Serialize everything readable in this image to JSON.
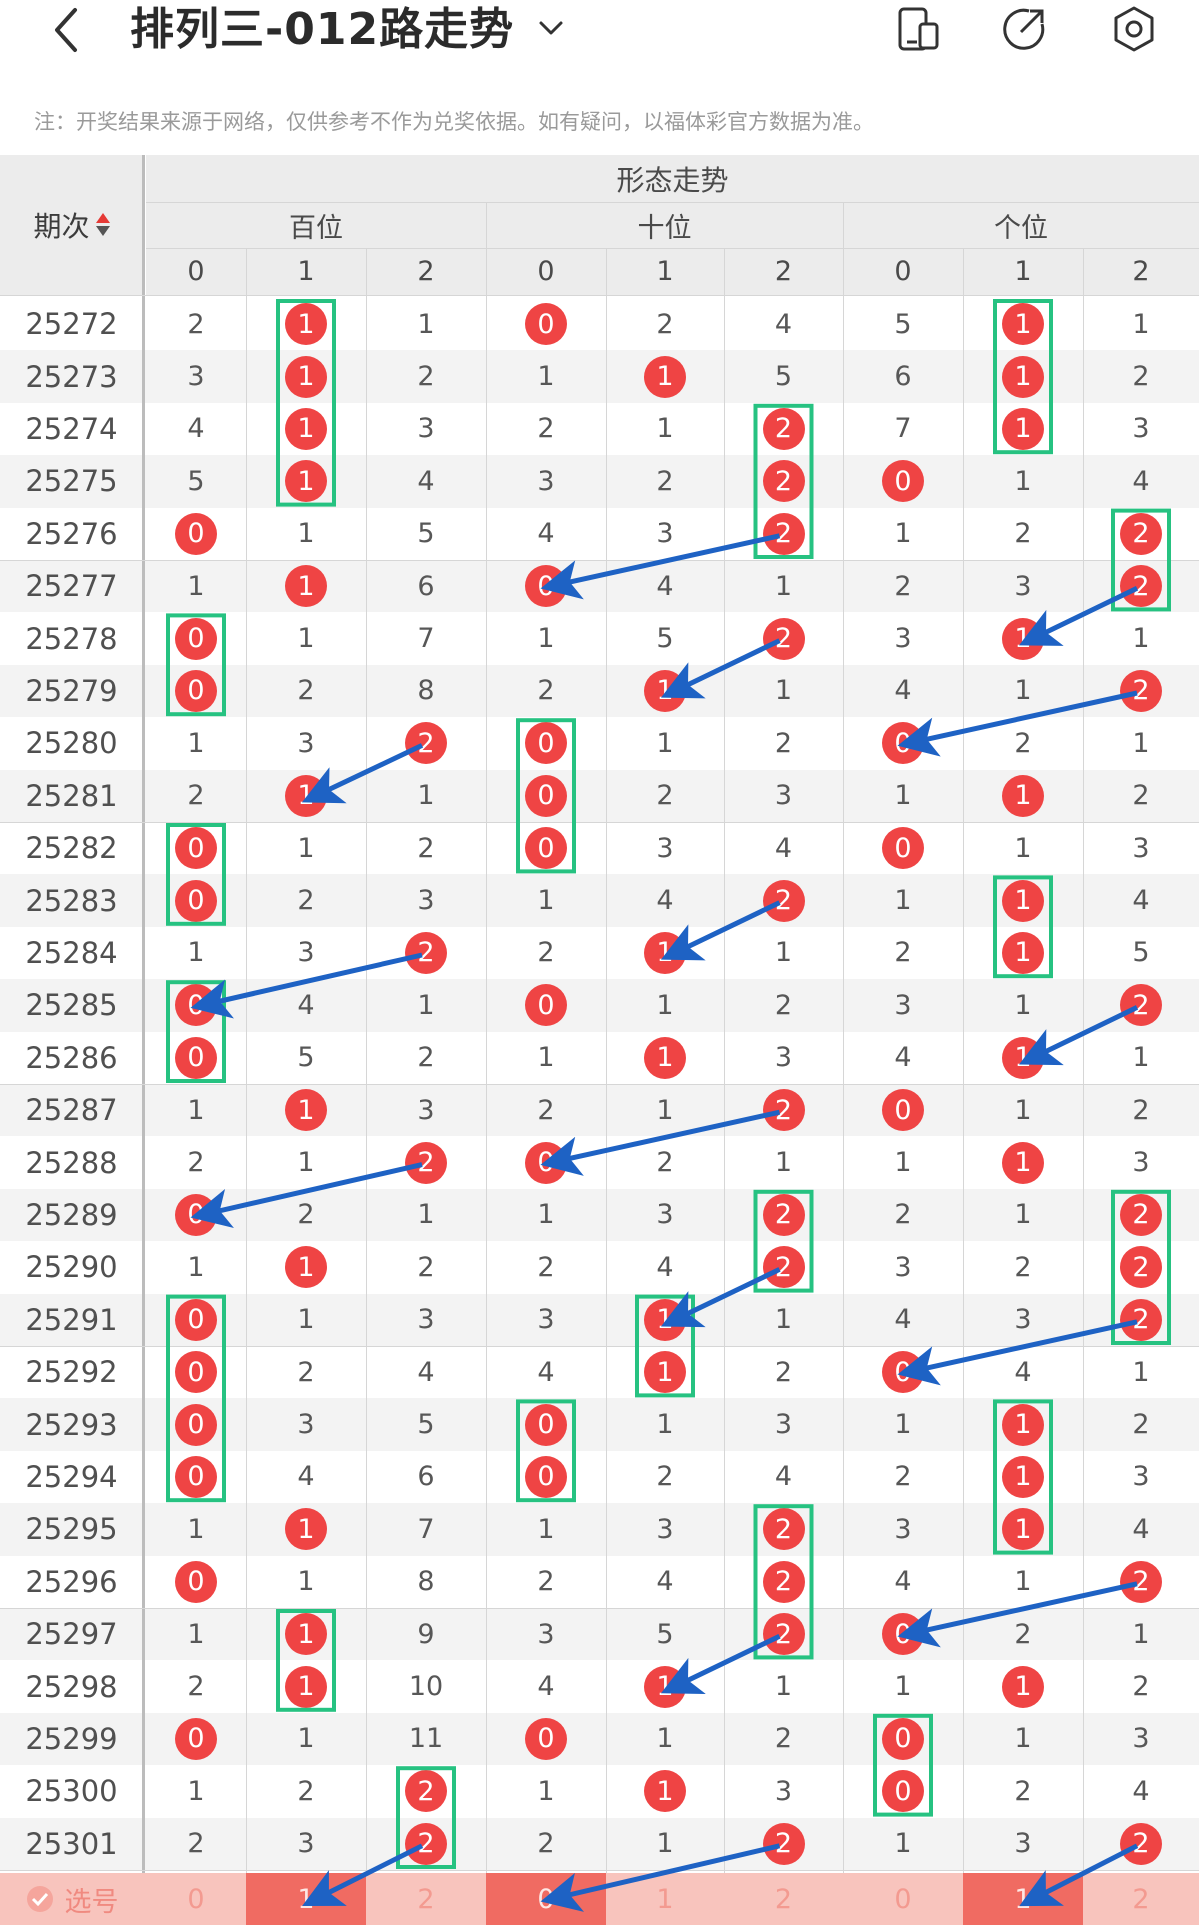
{
  "header": {
    "title": "排列三-012路走势",
    "back_icon": "chevron-left-icon",
    "dropdown_icon": "chevron-down-icon",
    "icons": [
      "phone-layout-icon",
      "share-icon",
      "settings-icon"
    ]
  },
  "note": "注：开奖结果来源于网络，仅供参考不作为兑奖依据。如有疑问，以福体彩官方数据为准。",
  "table": {
    "period_header": "期次",
    "section_header": "形态走势",
    "groups": [
      "百位",
      "十位",
      "个位"
    ],
    "digits": [
      "0",
      "1",
      "2"
    ],
    "rows": [
      {
        "period": "25272",
        "cells": [
          "2",
          "1",
          "1",
          "0",
          "2",
          "4",
          "5",
          "1",
          "1"
        ],
        "hit": [
          1,
          0,
          1
        ]
      },
      {
        "period": "25273",
        "cells": [
          "3",
          "1",
          "2",
          "1",
          "1",
          "5",
          "6",
          "1",
          "2"
        ],
        "hit": [
          1,
          1,
          1
        ]
      },
      {
        "period": "25274",
        "cells": [
          "4",
          "1",
          "3",
          "2",
          "1",
          "2",
          "7",
          "1",
          "3"
        ],
        "hit": [
          1,
          2,
          1
        ]
      },
      {
        "period": "25275",
        "cells": [
          "5",
          "1",
          "4",
          "3",
          "2",
          "2",
          "0",
          "1",
          "4"
        ],
        "hit": [
          1,
          2,
          0
        ]
      },
      {
        "period": "25276",
        "cells": [
          "0",
          "1",
          "5",
          "4",
          "3",
          "2",
          "1",
          "2",
          "2"
        ],
        "hit": [
          0,
          2,
          2
        ]
      },
      {
        "period": "25277",
        "cells": [
          "1",
          "1",
          "6",
          "0",
          "4",
          "1",
          "2",
          "3",
          "2"
        ],
        "hit": [
          1,
          0,
          2
        ]
      },
      {
        "period": "25278",
        "cells": [
          "0",
          "1",
          "7",
          "1",
          "5",
          "2",
          "3",
          "1",
          "1"
        ],
        "hit": [
          0,
          2,
          1
        ]
      },
      {
        "period": "25279",
        "cells": [
          "0",
          "2",
          "8",
          "2",
          "1",
          "1",
          "4",
          "1",
          "2"
        ],
        "hit": [
          0,
          1,
          2
        ]
      },
      {
        "period": "25280",
        "cells": [
          "1",
          "3",
          "2",
          "0",
          "1",
          "2",
          "0",
          "2",
          "1"
        ],
        "hit": [
          2,
          0,
          0
        ]
      },
      {
        "period": "25281",
        "cells": [
          "2",
          "1",
          "1",
          "0",
          "2",
          "3",
          "1",
          "1",
          "2"
        ],
        "hit": [
          1,
          0,
          1
        ]
      },
      {
        "period": "25282",
        "cells": [
          "0",
          "1",
          "2",
          "0",
          "3",
          "4",
          "0",
          "1",
          "3"
        ],
        "hit": [
          0,
          0,
          0
        ]
      },
      {
        "period": "25283",
        "cells": [
          "0",
          "2",
          "3",
          "1",
          "4",
          "2",
          "1",
          "1",
          "4"
        ],
        "hit": [
          0,
          2,
          1
        ]
      },
      {
        "period": "25284",
        "cells": [
          "1",
          "3",
          "2",
          "2",
          "1",
          "1",
          "2",
          "1",
          "5"
        ],
        "hit": [
          2,
          1,
          1
        ]
      },
      {
        "period": "25285",
        "cells": [
          "0",
          "4",
          "1",
          "0",
          "1",
          "2",
          "3",
          "1",
          "2"
        ],
        "hit": [
          0,
          0,
          2
        ]
      },
      {
        "period": "25286",
        "cells": [
          "0",
          "5",
          "2",
          "1",
          "1",
          "3",
          "4",
          "1",
          "1"
        ],
        "hit": [
          0,
          1,
          1
        ]
      },
      {
        "period": "25287",
        "cells": [
          "1",
          "1",
          "3",
          "2",
          "1",
          "2",
          "0",
          "1",
          "2"
        ],
        "hit": [
          1,
          2,
          0
        ]
      },
      {
        "period": "25288",
        "cells": [
          "2",
          "1",
          "2",
          "0",
          "2",
          "1",
          "1",
          "1",
          "3"
        ],
        "hit": [
          2,
          0,
          1
        ]
      },
      {
        "period": "25289",
        "cells": [
          "0",
          "2",
          "1",
          "1",
          "3",
          "2",
          "2",
          "1",
          "2"
        ],
        "hit": [
          0,
          2,
          2
        ]
      },
      {
        "period": "25290",
        "cells": [
          "1",
          "1",
          "2",
          "2",
          "4",
          "2",
          "3",
          "2",
          "2"
        ],
        "hit": [
          1,
          2,
          2
        ]
      },
      {
        "period": "25291",
        "cells": [
          "0",
          "1",
          "3",
          "3",
          "1",
          "1",
          "4",
          "3",
          "2"
        ],
        "hit": [
          0,
          1,
          2
        ]
      },
      {
        "period": "25292",
        "cells": [
          "0",
          "2",
          "4",
          "4",
          "1",
          "2",
          "0",
          "4",
          "1"
        ],
        "hit": [
          0,
          1,
          0
        ]
      },
      {
        "period": "25293",
        "cells": [
          "0",
          "3",
          "5",
          "0",
          "1",
          "3",
          "1",
          "1",
          "2"
        ],
        "hit": [
          0,
          0,
          1
        ]
      },
      {
        "period": "25294",
        "cells": [
          "0",
          "4",
          "6",
          "0",
          "2",
          "4",
          "2",
          "1",
          "3"
        ],
        "hit": [
          0,
          0,
          1
        ]
      },
      {
        "period": "25295",
        "cells": [
          "1",
          "1",
          "7",
          "1",
          "3",
          "2",
          "3",
          "1",
          "4"
        ],
        "hit": [
          1,
          2,
          1
        ]
      },
      {
        "period": "25296",
        "cells": [
          "0",
          "1",
          "8",
          "2",
          "4",
          "2",
          "4",
          "1",
          "2"
        ],
        "hit": [
          0,
          2,
          2
        ]
      },
      {
        "period": "25297",
        "cells": [
          "1",
          "1",
          "9",
          "3",
          "5",
          "2",
          "0",
          "2",
          "1"
        ],
        "hit": [
          1,
          2,
          0
        ]
      },
      {
        "period": "25298",
        "cells": [
          "2",
          "1",
          "10",
          "4",
          "1",
          "1",
          "1",
          "1",
          "2"
        ],
        "hit": [
          1,
          1,
          1
        ]
      },
      {
        "period": "25299",
        "cells": [
          "0",
          "1",
          "11",
          "0",
          "1",
          "2",
          "0",
          "1",
          "3"
        ],
        "hit": [
          0,
          0,
          0
        ]
      },
      {
        "period": "25300",
        "cells": [
          "1",
          "2",
          "2",
          "1",
          "1",
          "3",
          "0",
          "2",
          "4"
        ],
        "hit": [
          2,
          1,
          0
        ]
      },
      {
        "period": "25301",
        "cells": [
          "2",
          "3",
          "2",
          "2",
          "1",
          "2",
          "1",
          "3",
          "2"
        ],
        "hit": [
          2,
          2,
          2
        ]
      }
    ],
    "select_row": {
      "label": "选号",
      "cells": [
        "0",
        "1",
        "2",
        "0",
        "1",
        "2",
        "0",
        "1",
        "2"
      ],
      "selected": [
        1,
        0,
        1
      ]
    }
  },
  "colors": {
    "ball": "#ef4444",
    "streak_box": "#26c281",
    "arrow": "#1e62c4",
    "select_row_bg": "#f8c4bd",
    "select_on": "#f06b62"
  }
}
